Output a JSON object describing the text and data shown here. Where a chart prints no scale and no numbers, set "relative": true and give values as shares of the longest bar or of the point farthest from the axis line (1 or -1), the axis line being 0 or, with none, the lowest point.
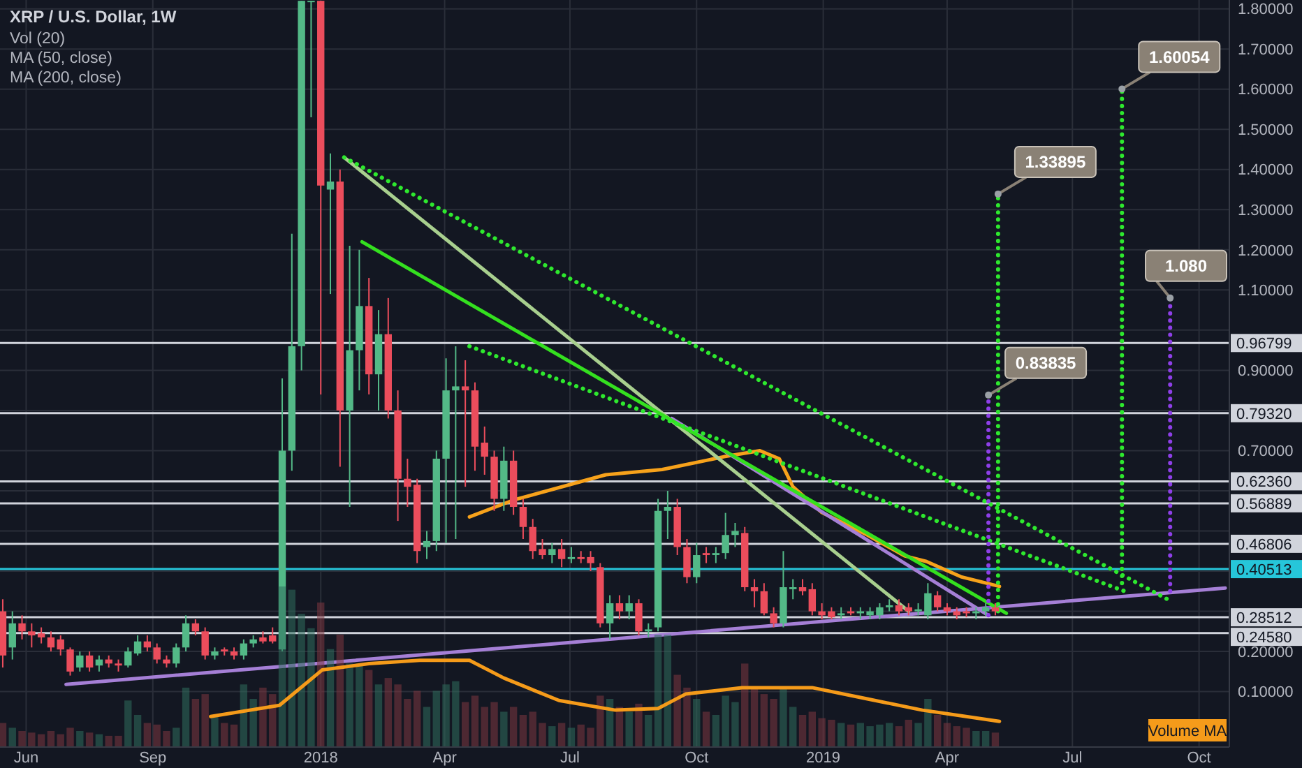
{
  "chart_data": [
    {
      "type": "candlestick",
      "title": "XRP / U.S. Dollar, 1W",
      "grid": true,
      "xlim": [
        "2017-05-13",
        "2019-10-23"
      ],
      "ylim": [
        -0.038,
        1.822
      ],
      "xticks": [
        {
          "value": "2017-06-01",
          "label": "Jun"
        },
        {
          "value": "2017-09-01",
          "label": "Sep"
        },
        {
          "value": "2018-01-01",
          "label": "2018"
        },
        {
          "value": "2018-04-01",
          "label": "Apr"
        },
        {
          "value": "2018-07-01",
          "label": "Jul"
        },
        {
          "value": "2018-10-01",
          "label": "Oct"
        },
        {
          "value": "2019-01-01",
          "label": "2019"
        },
        {
          "value": "2019-04-01",
          "label": "Apr"
        },
        {
          "value": "2019-07-01",
          "label": "Jul"
        },
        {
          "value": "2019-10-01",
          "label": "Oct"
        }
      ],
      "yticks": [
        {
          "value": 0.1,
          "label": "0.10000"
        },
        {
          "value": 0.2,
          "label": "0.20000"
        },
        {
          "value": 0.3,
          "label": null
        },
        {
          "value": 0.4,
          "label": null
        },
        {
          "value": 0.5,
          "label": null
        },
        {
          "value": 0.6,
          "label": null
        },
        {
          "value": 0.7,
          "label": "0.70000"
        },
        {
          "value": 0.8,
          "label": null
        },
        {
          "value": 0.9,
          "label": "0.90000"
        },
        {
          "value": 1,
          "label": null
        },
        {
          "value": 1.1,
          "label": "1.10000"
        },
        {
          "value": 1.2,
          "label": "1.20000"
        },
        {
          "value": 1.3,
          "label": "1.30000"
        },
        {
          "value": 1.4,
          "label": "1.40000"
        },
        {
          "value": 1.5,
          "label": "1.50000"
        },
        {
          "value": 1.6,
          "label": "1.60000"
        },
        {
          "value": 1.7,
          "label": "1.70000"
        },
        {
          "value": 1.8,
          "label": "1.80000"
        }
      ],
      "x": [
        "2017-05-15",
        "2017-05-22",
        "2017-05-29",
        "2017-06-05",
        "2017-06-12",
        "2017-06-19",
        "2017-06-26",
        "2017-07-03",
        "2017-07-10",
        "2017-07-17",
        "2017-07-24",
        "2017-07-31",
        "2017-08-07",
        "2017-08-14",
        "2017-08-21",
        "2017-08-28",
        "2017-09-04",
        "2017-09-11",
        "2017-09-18",
        "2017-09-25",
        "2017-10-02",
        "2017-10-09",
        "2017-10-16",
        "2017-10-23",
        "2017-10-30",
        "2017-11-06",
        "2017-11-13",
        "2017-11-20",
        "2017-11-27",
        "2017-12-04",
        "2017-12-11",
        "2017-12-18",
        "2017-12-25",
        "2018-01-01",
        "2018-01-08",
        "2018-01-15",
        "2018-01-22",
        "2018-01-29",
        "2018-02-05",
        "2018-02-12",
        "2018-02-19",
        "2018-02-26",
        "2018-03-05",
        "2018-03-12",
        "2018-03-19",
        "2018-03-26",
        "2018-04-02",
        "2018-04-09",
        "2018-04-16",
        "2018-04-23",
        "2018-04-30",
        "2018-05-07",
        "2018-05-14",
        "2018-05-21",
        "2018-05-28",
        "2018-06-04",
        "2018-06-11",
        "2018-06-18",
        "2018-06-25",
        "2018-07-02",
        "2018-07-09",
        "2018-07-16",
        "2018-07-23",
        "2018-07-30",
        "2018-08-06",
        "2018-08-13",
        "2018-08-20",
        "2018-08-27",
        "2018-09-03",
        "2018-09-10",
        "2018-09-17",
        "2018-09-24",
        "2018-10-01",
        "2018-10-08",
        "2018-10-15",
        "2018-10-22",
        "2018-10-29",
        "2018-11-05",
        "2018-11-12",
        "2018-11-19",
        "2018-11-26",
        "2018-12-03",
        "2018-12-10",
        "2018-12-17",
        "2018-12-24",
        "2018-12-31",
        "2019-01-07",
        "2019-01-14",
        "2019-01-21",
        "2019-01-28",
        "2019-02-04",
        "2019-02-11",
        "2019-02-18",
        "2019-02-25",
        "2019-03-04",
        "2019-03-11",
        "2019-03-18",
        "2019-03-25",
        "2019-04-01",
        "2019-04-08",
        "2019-04-15",
        "2019-04-22",
        "2019-04-29",
        "2019-05-06"
      ],
      "ohlc": [
        [
          0.3,
          0.33,
          0.16,
          0.19
        ],
        [
          0.21,
          0.3,
          0.18,
          0.27
        ],
        [
          0.27,
          0.29,
          0.23,
          0.25
        ],
        [
          0.25,
          0.27,
          0.21,
          0.24
        ],
        [
          0.245,
          0.26,
          0.22,
          0.235
        ],
        [
          0.235,
          0.25,
          0.2,
          0.21
        ],
        [
          0.23,
          0.24,
          0.19,
          0.205
        ],
        [
          0.205,
          0.21,
          0.14,
          0.15
        ],
        [
          0.16,
          0.2,
          0.15,
          0.19
        ],
        [
          0.19,
          0.2,
          0.15,
          0.16
        ],
        [
          0.165,
          0.19,
          0.15,
          0.18
        ],
        [
          0.18,
          0.19,
          0.16,
          0.17
        ],
        [
          0.17,
          0.18,
          0.15,
          0.165
        ],
        [
          0.165,
          0.21,
          0.16,
          0.2
        ],
        [
          0.195,
          0.24,
          0.19,
          0.225
        ],
        [
          0.225,
          0.24,
          0.2,
          0.21
        ],
        [
          0.21,
          0.22,
          0.17,
          0.18
        ],
        [
          0.18,
          0.19,
          0.16,
          0.17
        ],
        [
          0.17,
          0.22,
          0.16,
          0.21
        ],
        [
          0.21,
          0.29,
          0.2,
          0.27
        ],
        [
          0.27,
          0.28,
          0.24,
          0.25
        ],
        [
          0.25,
          0.26,
          0.18,
          0.19
        ],
        [
          0.19,
          0.21,
          0.18,
          0.2
        ],
        [
          0.205,
          0.21,
          0.19,
          0.2
        ],
        [
          0.2,
          0.21,
          0.18,
          0.19
        ],
        [
          0.19,
          0.23,
          0.18,
          0.22
        ],
        [
          0.22,
          0.24,
          0.21,
          0.23
        ],
        [
          0.235,
          0.25,
          0.22,
          0.225
        ],
        [
          0.24,
          0.26,
          0.22,
          0.225
        ],
        [
          0.205,
          0.88,
          0.2,
          0.7
        ],
        [
          0.7,
          1.24,
          0.65,
          0.96
        ],
        [
          0.96,
          1.82,
          0.9,
          1.82
        ],
        [
          1.82,
          1.82,
          1.53,
          1.82
        ],
        [
          1.82,
          1.82,
          0.84,
          1.36
        ],
        [
          1.35,
          1.44,
          1.09,
          1.37
        ],
        [
          1.37,
          1.4,
          0.66,
          0.8
        ],
        [
          0.8,
          1.21,
          0.56,
          0.95
        ],
        [
          0.95,
          1.2,
          0.85,
          1.06
        ],
        [
          1.06,
          1.13,
          0.84,
          0.89
        ],
        [
          0.89,
          1.05,
          0.8,
          0.99
        ],
        [
          0.99,
          1.08,
          0.78,
          0.8
        ],
        [
          0.8,
          0.85,
          0.525,
          0.63
        ],
        [
          0.63,
          0.68,
          0.56,
          0.61
        ],
        [
          0.615,
          0.63,
          0.42,
          0.45
        ],
        [
          0.46,
          0.5,
          0.43,
          0.475
        ],
        [
          0.475,
          0.7,
          0.45,
          0.68
        ],
        [
          0.68,
          0.93,
          0.47,
          0.85
        ],
        [
          0.85,
          0.96,
          0.48,
          0.86
        ],
        [
          0.86,
          0.925,
          0.61,
          0.85
        ],
        [
          0.85,
          0.87,
          0.65,
          0.71
        ],
        [
          0.72,
          0.76,
          0.64,
          0.685
        ],
        [
          0.685,
          0.7,
          0.55,
          0.58
        ],
        [
          0.58,
          0.71,
          0.55,
          0.675
        ],
        [
          0.675,
          0.7,
          0.54,
          0.56
        ],
        [
          0.56,
          0.58,
          0.48,
          0.51
        ],
        [
          0.51,
          0.53,
          0.43,
          0.45
        ],
        [
          0.455,
          0.48,
          0.43,
          0.44
        ],
        [
          0.44,
          0.47,
          0.42,
          0.455
        ],
        [
          0.455,
          0.48,
          0.41,
          0.43
        ],
        [
          0.43,
          0.46,
          0.42,
          0.435
        ],
        [
          0.435,
          0.45,
          0.42,
          0.43
        ],
        [
          0.435,
          0.45,
          0.4,
          0.42
        ],
        [
          0.41,
          0.42,
          0.26,
          0.27
        ],
        [
          0.27,
          0.34,
          0.23,
          0.32
        ],
        [
          0.32,
          0.34,
          0.28,
          0.3
        ],
        [
          0.3,
          0.34,
          0.28,
          0.32
        ],
        [
          0.32,
          0.33,
          0.24,
          0.25
        ],
        [
          0.25,
          0.27,
          0.235,
          0.255
        ],
        [
          0.26,
          0.58,
          0.25,
          0.55
        ],
        [
          0.55,
          0.6,
          0.48,
          0.56
        ],
        [
          0.56,
          0.58,
          0.44,
          0.46
        ],
        [
          0.46,
          0.48,
          0.37,
          0.385
        ],
        [
          0.385,
          0.47,
          0.37,
          0.44
        ],
        [
          0.445,
          0.46,
          0.42,
          0.44
        ],
        [
          0.44,
          0.46,
          0.42,
          0.445
        ],
        [
          0.445,
          0.545,
          0.43,
          0.49
        ],
        [
          0.49,
          0.52,
          0.46,
          0.5
        ],
        [
          0.495,
          0.51,
          0.35,
          0.36
        ],
        [
          0.36,
          0.38,
          0.31,
          0.35
        ],
        [
          0.35,
          0.37,
          0.29,
          0.295
        ],
        [
          0.295,
          0.31,
          0.26,
          0.27
        ],
        [
          0.27,
          0.45,
          0.26,
          0.36
        ],
        [
          0.355,
          0.38,
          0.33,
          0.36
        ],
        [
          0.36,
          0.38,
          0.34,
          0.35
        ],
        [
          0.355,
          0.37,
          0.29,
          0.3
        ],
        [
          0.3,
          0.32,
          0.28,
          0.29
        ],
        [
          0.3,
          0.31,
          0.28,
          0.285
        ],
        [
          0.29,
          0.31,
          0.28,
          0.295
        ],
        [
          0.3,
          0.31,
          0.29,
          0.295
        ],
        [
          0.295,
          0.31,
          0.28,
          0.3
        ],
        [
          0.29,
          0.31,
          0.28,
          0.3
        ],
        [
          0.29,
          0.32,
          0.28,
          0.31
        ],
        [
          0.31,
          0.33,
          0.3,
          0.315
        ],
        [
          0.315,
          0.33,
          0.29,
          0.3
        ],
        [
          0.31,
          0.32,
          0.29,
          0.3
        ],
        [
          0.3,
          0.32,
          0.29,
          0.305
        ],
        [
          0.29,
          0.37,
          0.28,
          0.345
        ],
        [
          0.34,
          0.35,
          0.3,
          0.31
        ],
        [
          0.31,
          0.32,
          0.29,
          0.3
        ],
        [
          0.3,
          0.31,
          0.28,
          0.29
        ],
        [
          0.3,
          0.31,
          0.285,
          0.295
        ],
        [
          0.295,
          0.31,
          0.28,
          0.3
        ],
        [
          0.3,
          0.32,
          0.29,
          0.31
        ],
        [
          0.31,
          0.32,
          0.29,
          0.3
        ]
      ],
      "series": [
        {
          "type": "line",
          "color": "#f7a21b",
          "line_style": "solid",
          "x": [
            "2018-04-19",
            "2018-05-21",
            "2018-07-27",
            "2018-09-06",
            "2018-10-21",
            "2018-11-16",
            "2018-11-30",
            "2018-12-10",
            "2018-12-31",
            "2019-02-02",
            "2019-03-01",
            "2019-03-17",
            "2019-04-11",
            "2019-05-09"
          ],
          "values": [
            0.535,
            0.577,
            0.64,
            0.653,
            0.685,
            0.7,
            0.68,
            0.61,
            0.546,
            0.49,
            0.438,
            0.424,
            0.386,
            0.362
          ]
        },
        {
          "type": "line",
          "color": "#a57fd6",
          "line_style": "solid",
          "x": [
            "2017-06-30",
            "2019-10-20"
          ],
          "values": [
            0.118,
            0.358
          ]
        },
        {
          "type": "line",
          "color": "#a57fd6",
          "line_style": "solid",
          "x": [
            "2018-09-13",
            "2019-05-01"
          ],
          "values": [
            0.78,
            0.29
          ]
        },
        {
          "type": "line",
          "color": "#a8cf8e",
          "line_style": "solid",
          "x": [
            "2018-01-18",
            "2019-03-04"
          ],
          "values": [
            1.43,
            0.3
          ]
        },
        {
          "type": "line",
          "color": "#34e01f",
          "line_style": "solid",
          "x": [
            "2018-01-31",
            "2019-05-14"
          ],
          "values": [
            1.22,
            0.295
          ]
        },
        {
          "type": "line",
          "color": "#2ee82e",
          "line_style": "dotted",
          "x": [
            "2018-01-18",
            "2019-09-08"
          ],
          "values": [
            1.43,
            0.33
          ]
        },
        {
          "type": "line",
          "color": "#2ee82e",
          "line_style": "dotted",
          "x": [
            "2018-04-19",
            "2019-08-08"
          ],
          "values": [
            0.96,
            0.35
          ]
        },
        {
          "type": "line",
          "color": "#8e3fe8",
          "line_style": "dotted",
          "x": [
            "2019-05-01",
            "2019-05-01"
          ],
          "values": [
            0.29,
            0.83835
          ]
        },
        {
          "type": "line",
          "color": "#2ee82e",
          "line_style": "dotted",
          "x": [
            "2019-05-08",
            "2019-05-08"
          ],
          "values": [
            0.3,
            1.33895
          ]
        },
        {
          "type": "line",
          "color": "#2ee82e",
          "line_style": "dotted",
          "x": [
            "2019-08-06",
            "2019-08-06"
          ],
          "values": [
            0.37,
            1.60054
          ]
        },
        {
          "type": "line",
          "color": "#8e3fe8",
          "line_style": "dotted",
          "x": [
            "2019-09-10",
            "2019-09-10"
          ],
          "values": [
            0.35,
            1.08
          ]
        }
      ],
      "ref_lines": [
        {
          "axis": "y",
          "value": 0.96799,
          "label": "0.96799",
          "color": "#d1d4dc"
        },
        {
          "axis": "y",
          "value": 0.7932,
          "label": "0.79320",
          "color": "#d1d4dc"
        },
        {
          "axis": "y",
          "value": 0.6236,
          "label": "0.62360",
          "color": "#d1d4dc"
        },
        {
          "axis": "y",
          "value": 0.56889,
          "label": "0.56889",
          "color": "#d1d4dc"
        },
        {
          "axis": "y",
          "value": 0.46806,
          "label": "0.46806",
          "color": "#d1d4dc"
        },
        {
          "axis": "y",
          "value": 0.40513,
          "label": "0.40513",
          "color": "#26c6da"
        },
        {
          "axis": "y",
          "value": 0.28512,
          "label": "0.28512",
          "color": "#d1d4dc"
        },
        {
          "axis": "y",
          "value": 0.2458,
          "label": "0.24580",
          "color": "#d1d4dc"
        }
      ],
      "annotations": [
        "Vol (20)",
        "MA (50, close)",
        "MA (200, close)",
        {
          "text": "0.83835",
          "x": "2019-05-01",
          "y": 0.83835
        },
        {
          "text": "1.33895",
          "x": "2019-05-08",
          "y": 1.33895
        },
        {
          "text": "1.60054",
          "x": "2019-08-06",
          "y": 1.60054
        },
        {
          "text": "1.080",
          "x": "2019-09-10",
          "y": 1.08
        }
      ]
    },
    {
      "type": "bar",
      "relative": true,
      "xlim": [
        "2017-05-13",
        "2019-10-23"
      ],
      "series": [
        {
          "type": "bar",
          "x": [
            "2017-05-15",
            "2017-05-22",
            "2017-05-29",
            "2017-06-05",
            "2017-06-12",
            "2017-06-19",
            "2017-06-26",
            "2017-07-03",
            "2017-07-10",
            "2017-07-17",
            "2017-07-24",
            "2017-07-31",
            "2017-08-07",
            "2017-08-14",
            "2017-08-21",
            "2017-08-28",
            "2017-09-04",
            "2017-09-11",
            "2017-09-18",
            "2017-09-25",
            "2017-10-02",
            "2017-10-09",
            "2017-10-16",
            "2017-10-23",
            "2017-10-30",
            "2017-11-06",
            "2017-11-13",
            "2017-11-20",
            "2017-11-27",
            "2017-12-04",
            "2017-12-11",
            "2017-12-18",
            "2017-12-25",
            "2018-01-01",
            "2018-01-08",
            "2018-01-15",
            "2018-01-22",
            "2018-01-29",
            "2018-02-05",
            "2018-02-12",
            "2018-02-19",
            "2018-02-26",
            "2018-03-05",
            "2018-03-12",
            "2018-03-19",
            "2018-03-26",
            "2018-04-02",
            "2018-04-09",
            "2018-04-16",
            "2018-04-23",
            "2018-04-30",
            "2018-05-07",
            "2018-05-14",
            "2018-05-21",
            "2018-05-28",
            "2018-06-04",
            "2018-06-11",
            "2018-06-18",
            "2018-06-25",
            "2018-07-02",
            "2018-07-09",
            "2018-07-16",
            "2018-07-23",
            "2018-07-30",
            "2018-08-06",
            "2018-08-13",
            "2018-08-20",
            "2018-08-27",
            "2018-09-03",
            "2018-09-10",
            "2018-09-17",
            "2018-09-24",
            "2018-10-01",
            "2018-10-08",
            "2018-10-15",
            "2018-10-22",
            "2018-10-29",
            "2018-11-05",
            "2018-11-12",
            "2018-11-19",
            "2018-11-26",
            "2018-12-03",
            "2018-12-10",
            "2018-12-17",
            "2018-12-24",
            "2018-12-31",
            "2019-01-07",
            "2019-01-14",
            "2019-01-21",
            "2019-01-28",
            "2019-02-04",
            "2019-02-11",
            "2019-02-18",
            "2019-02-25",
            "2019-03-04",
            "2019-03-11",
            "2019-03-18",
            "2019-03-25",
            "2019-04-01",
            "2019-04-08",
            "2019-04-15",
            "2019-04-22",
            "2019-04-29",
            "2019-05-06"
          ],
          "values": [
            0.15,
            0.12,
            0.1,
            0.09,
            0.08,
            0.1,
            0.08,
            0.12,
            0.1,
            0.09,
            0.08,
            0.07,
            0.07,
            0.29,
            0.2,
            0.15,
            0.14,
            0.1,
            0.12,
            0.37,
            0.3,
            0.33,
            0.2,
            0.15,
            0.14,
            0.39,
            0.3,
            0.37,
            0.33,
            1,
            0.98,
            0.83,
            0.74,
            0.9,
            0.61,
            0.7,
            0.52,
            0.52,
            0.48,
            0.39,
            0.43,
            0.39,
            0.3,
            0.35,
            0.25,
            0.35,
            0.39,
            0.41,
            0.28,
            0.32,
            0.25,
            0.28,
            0.22,
            0.25,
            0.2,
            0.22,
            0.15,
            0.13,
            0.15,
            0.12,
            0.14,
            0.12,
            0.32,
            0.3,
            0.25,
            0.22,
            0.27,
            0.2,
            0.7,
            0.7,
            0.45,
            0.37,
            0.3,
            0.22,
            0.2,
            0.32,
            0.28,
            0.52,
            0.37,
            0.33,
            0.3,
            0.37,
            0.25,
            0.2,
            0.22,
            0.18,
            0.17,
            0.15,
            0.14,
            0.15,
            0.13,
            0.14,
            0.15,
            0.13,
            0.17,
            0.15,
            0.3,
            0.2,
            0.15,
            0.13,
            0.12,
            0.1,
            0.1,
            0.09
          ],
          "colors": [
            "#7d3640",
            "#2f6e5c",
            "#7d3640",
            "#7d3640",
            "#7d3640",
            "#7d3640",
            "#7d3640",
            "#7d3640",
            "#2f6e5c",
            "#7d3640",
            "#2f6e5c",
            "#7d3640",
            "#7d3640",
            "#2f6e5c",
            "#2f6e5c",
            "#7d3640",
            "#7d3640",
            "#7d3640",
            "#2f6e5c",
            "#2f6e5c",
            "#7d3640",
            "#7d3640",
            "#2f6e5c",
            "#7d3640",
            "#7d3640",
            "#2f6e5c",
            "#2f6e5c",
            "#7d3640",
            "#7d3640",
            "#2f6e5c",
            "#2f6e5c",
            "#2f6e5c",
            "#2f6e5c",
            "#7d3640",
            "#2f6e5c",
            "#7d3640",
            "#2f6e5c",
            "#2f6e5c",
            "#7d3640",
            "#2f6e5c",
            "#7d3640",
            "#7d3640",
            "#7d3640",
            "#7d3640",
            "#2f6e5c",
            "#2f6e5c",
            "#2f6e5c",
            "#2f6e5c",
            "#7d3640",
            "#7d3640",
            "#7d3640",
            "#7d3640",
            "#2f6e5c",
            "#7d3640",
            "#7d3640",
            "#7d3640",
            "#7d3640",
            "#2f6e5c",
            "#7d3640",
            "#2f6e5c",
            "#7d3640",
            "#7d3640",
            "#7d3640",
            "#2f6e5c",
            "#7d3640",
            "#2f6e5c",
            "#7d3640",
            "#2f6e5c",
            "#2f6e5c",
            "#2f6e5c",
            "#7d3640",
            "#7d3640",
            "#2f6e5c",
            "#7d3640",
            "#2f6e5c",
            "#2f6e5c",
            "#2f6e5c",
            "#7d3640",
            "#7d3640",
            "#7d3640",
            "#7d3640",
            "#2f6e5c",
            "#2f6e5c",
            "#7d3640",
            "#7d3640",
            "#7d3640",
            "#7d3640",
            "#2f6e5c",
            "#7d3640",
            "#2f6e5c",
            "#2f6e5c",
            "#2f6e5c",
            "#2f6e5c",
            "#7d3640",
            "#7d3640",
            "#2f6e5c",
            "#2f6e5c",
            "#7d3640",
            "#7d3640",
            "#7d3640",
            "#7d3640",
            "#2f6e5c",
            "#2f6e5c",
            "#7d3640"
          ]
        },
        {
          "type": "line",
          "name": "Volume MA",
          "color": "#f59b1a",
          "x": [
            "2017-10-13",
            "2017-12-02",
            "2018-01-02",
            "2018-02-05",
            "2018-03-14",
            "2018-04-19",
            "2018-05-14",
            "2018-06-23",
            "2018-08-03",
            "2018-09-03",
            "2018-09-23",
            "2018-11-03",
            "2018-12-24",
            "2019-02-02",
            "2019-03-14",
            "2019-05-09"
          ],
          "values": [
            0.19,
            0.26,
            0.48,
            0.52,
            0.54,
            0.54,
            0.43,
            0.29,
            0.23,
            0.24,
            0.33,
            0.37,
            0.37,
            0.3,
            0.23,
            0.16
          ]
        }
      ]
    }
  ]
}
